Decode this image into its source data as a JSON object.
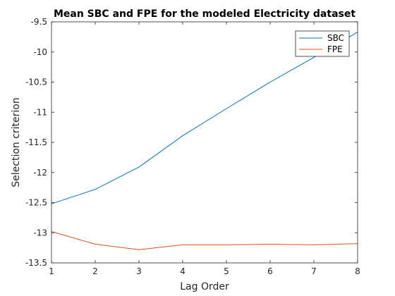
{
  "chart_data": {
    "type": "line",
    "title": "Mean SBC and FPE for the modeled Electricity dataset",
    "xlabel": "Lag Order",
    "ylabel": "Selection criterion",
    "x": [
      1,
      2,
      3,
      4,
      5,
      6,
      7,
      8
    ],
    "xlim": [
      1,
      8
    ],
    "ylim": [
      -13.5,
      -9.5
    ],
    "xticks": [
      "1",
      "2",
      "3",
      "4",
      "5",
      "6",
      "7",
      "8"
    ],
    "yticks": [
      "-9.5",
      "-10",
      "-10.5",
      "-11",
      "-11.5",
      "-12",
      "-12.5",
      "-13",
      "-13.5"
    ],
    "grid": false,
    "legend_position": "top-right",
    "series": [
      {
        "name": "SBC",
        "color": "#0072BD",
        "values": [
          -12.52,
          -12.28,
          -11.91,
          -11.39,
          -10.94,
          -10.5,
          -10.09,
          -9.67
        ]
      },
      {
        "name": "FPE",
        "color": "#D95319",
        "values": [
          -12.98,
          -13.19,
          -13.28,
          -13.2,
          -13.2,
          -13.19,
          -13.2,
          -13.18
        ]
      }
    ]
  }
}
